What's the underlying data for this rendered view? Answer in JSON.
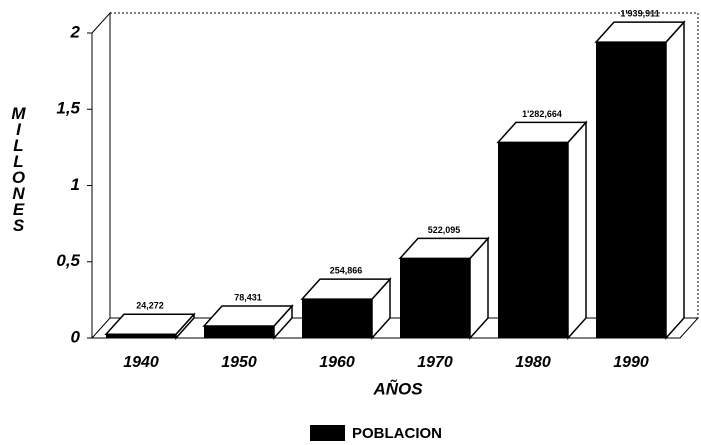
{
  "chart_data": {
    "type": "bar3d",
    "categories": [
      "1940",
      "1950",
      "1960",
      "1970",
      "1980",
      "1990"
    ],
    "series": [
      {
        "name": "POBLACION",
        "color": "#000000",
        "values": [
          0.024272,
          0.078431,
          0.254866,
          0.522095,
          1.282664,
          1.939911
        ],
        "value_labels": [
          "24,272",
          "78,431",
          "254,866",
          "522,095",
          "1'282,664",
          "1'939,911"
        ]
      }
    ],
    "ylim": [
      0,
      2
    ],
    "yticks": [
      0,
      {
        "value": 0.5,
        "label": "0,5"
      },
      1,
      {
        "value": 1.5,
        "label": "1,5"
      },
      2
    ],
    "ylabel": "MILLONES",
    "xlabel": "AÑOS"
  }
}
